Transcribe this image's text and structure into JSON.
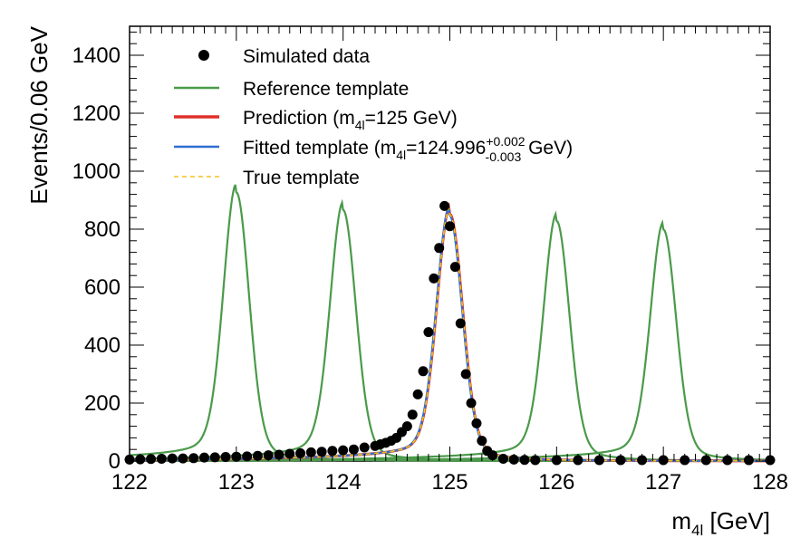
{
  "chart_data": {
    "type": "line",
    "xlabel": "m",
    "xlabel_sub": "4l",
    "xlabel_unit": "[GeV]",
    "ylabel": "Events/0.06 GeV",
    "xlim": [
      122,
      128
    ],
    "ylim": [
      0,
      1500
    ],
    "x_ticks": [
      "122",
      "123",
      "124",
      "125",
      "126",
      "127",
      "128"
    ],
    "y_ticks": [
      "0",
      "200",
      "400",
      "600",
      "800",
      "1000",
      "1200",
      "1400"
    ],
    "legend": [
      {
        "label": "Simulated data",
        "kind": "marker",
        "color": "#000000"
      },
      {
        "label": "Reference template",
        "kind": "line",
        "color": "#4a9a4a"
      },
      {
        "label_main": "Prediction (m",
        "label_sub": "4l",
        "label_rest": "=125 GeV)",
        "kind": "line",
        "color": "#e0302a"
      },
      {
        "label_main": "Fitted template (m",
        "label_sub": "4l",
        "label_value": "=124.996",
        "label_sup": "+0.002",
        "label_lowsub": "-0.003",
        "label_rest": " GeV)",
        "kind": "line",
        "color": "#2f6fcf"
      },
      {
        "label": "True template",
        "kind": "dashed",
        "color": "#f2c21c"
      }
    ],
    "reference_templates": [
      {
        "mass": 123,
        "peak": 920
      },
      {
        "mass": 124,
        "peak": 860
      },
      {
        "mass": 126,
        "peak": 822
      },
      {
        "mass": 127,
        "peak": 793
      }
    ],
    "prediction": {
      "mass": 125,
      "peak": 845
    },
    "fitted": {
      "mass": 124.996,
      "peak": 842
    },
    "true_template": {
      "mass": 125,
      "peak": 843
    },
    "simulated_data": {
      "x": [
        122.0,
        122.1,
        122.2,
        122.3,
        122.4,
        122.5,
        122.6,
        122.7,
        122.8,
        122.9,
        123.0,
        123.1,
        123.2,
        123.3,
        123.4,
        123.5,
        123.6,
        123.7,
        123.8,
        123.9,
        124.0,
        124.1,
        124.2,
        124.3,
        124.35,
        124.4,
        124.45,
        124.5,
        124.55,
        124.6,
        124.65,
        124.7,
        124.75,
        124.8,
        124.85,
        124.9,
        124.95,
        125.0,
        125.05,
        125.1,
        125.15,
        125.2,
        125.25,
        125.3,
        125.35,
        125.4,
        125.5,
        125.6,
        125.7,
        125.8,
        126.0,
        126.2,
        126.4,
        126.6,
        126.8,
        127.0,
        127.2,
        127.4,
        127.6,
        127.8,
        128.0
      ],
      "y": [
        5,
        6,
        7,
        8,
        9,
        9,
        10,
        12,
        13,
        14,
        15,
        16,
        18,
        20,
        22,
        25,
        27,
        30,
        32,
        35,
        37,
        40,
        47,
        52,
        58,
        63,
        70,
        80,
        100,
        120,
        160,
        230,
        310,
        445,
        630,
        735,
        880,
        810,
        670,
        475,
        300,
        200,
        130,
        70,
        35,
        20,
        8,
        5,
        4,
        3,
        3,
        3,
        3,
        3,
        3,
        3,
        3,
        3,
        3,
        3,
        3
      ]
    },
    "colors": {
      "data": "#000000",
      "reference": "#4a9a4a",
      "prediction": "#e0302a",
      "fitted": "#2f6fcf",
      "true": "#f2c21c"
    }
  }
}
